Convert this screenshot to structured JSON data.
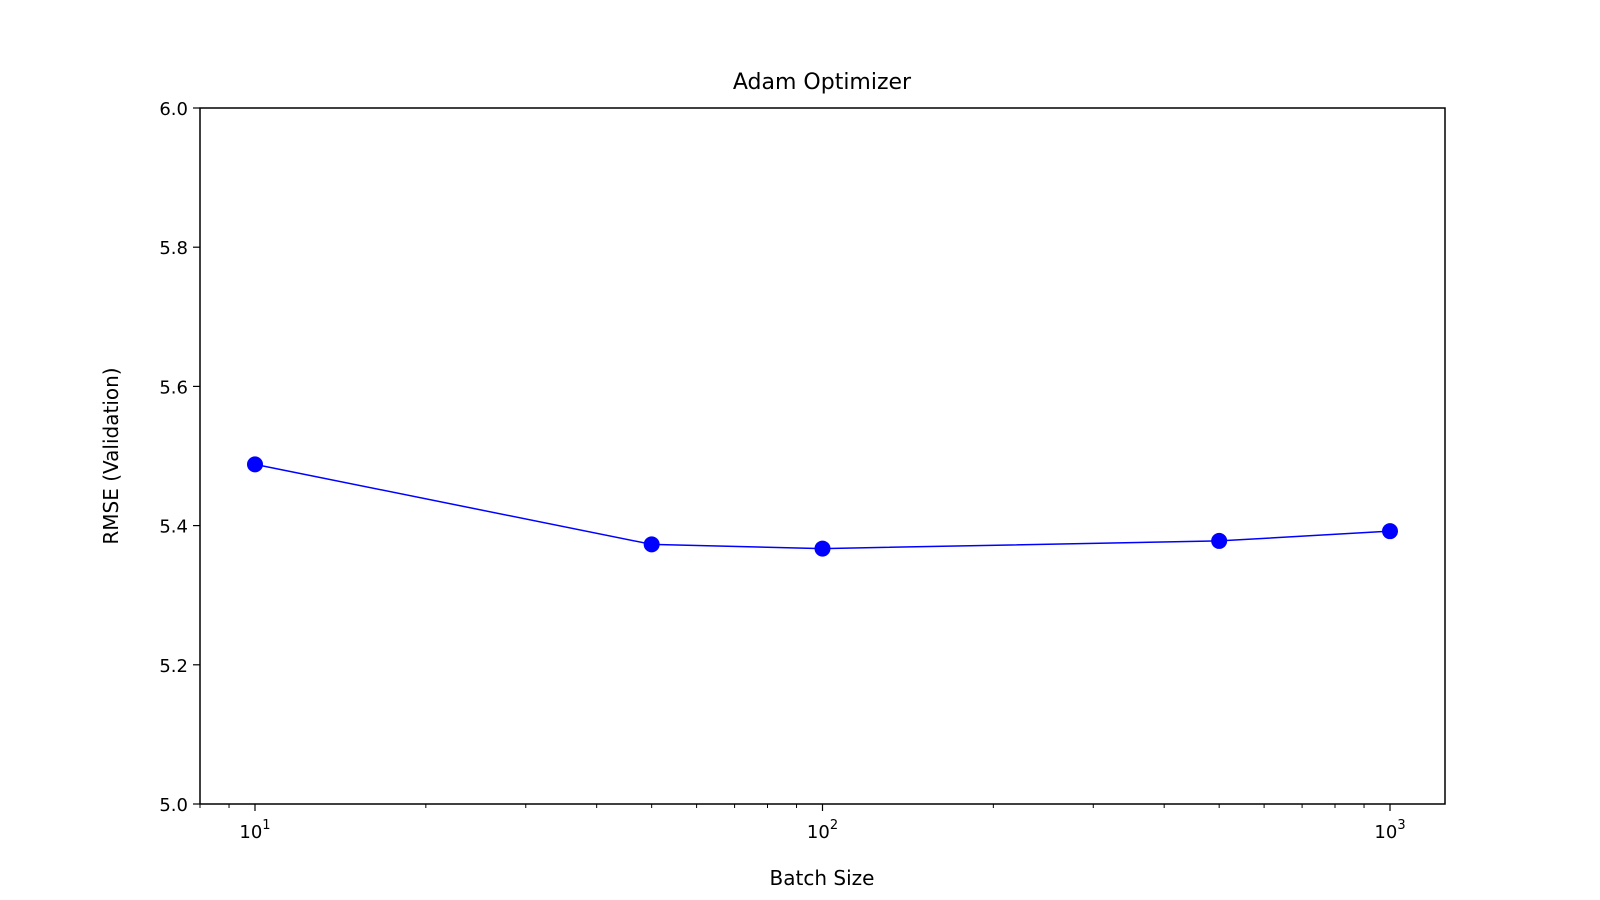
{
  "chart_data": {
    "type": "line",
    "title": "Adam Optimizer",
    "xlabel": "Batch Size",
    "ylabel": "RMSE (Validation)",
    "x_scale": "log",
    "xlim": [
      8,
      1250
    ],
    "ylim": [
      5.0,
      6.0
    ],
    "x_ticks": [
      {
        "value": 10,
        "base": "10",
        "exp": "1"
      },
      {
        "value": 100,
        "base": "10",
        "exp": "2"
      },
      {
        "value": 1000,
        "base": "10",
        "exp": "3"
      }
    ],
    "y_ticks": [
      {
        "value": 5.0,
        "label": "5.0"
      },
      {
        "value": 5.2,
        "label": "5.2"
      },
      {
        "value": 5.4,
        "label": "5.4"
      },
      {
        "value": 5.6,
        "label": "5.6"
      },
      {
        "value": 5.8,
        "label": "5.8"
      },
      {
        "value": 6.0,
        "label": "6.0"
      }
    ],
    "grid": false,
    "legend": "none",
    "series": [
      {
        "x": [
          10,
          50,
          100,
          500,
          1000
        ],
        "y": [
          5.488,
          5.373,
          5.367,
          5.378,
          5.392
        ],
        "color": "#0000ff",
        "marker": "circle"
      }
    ]
  }
}
